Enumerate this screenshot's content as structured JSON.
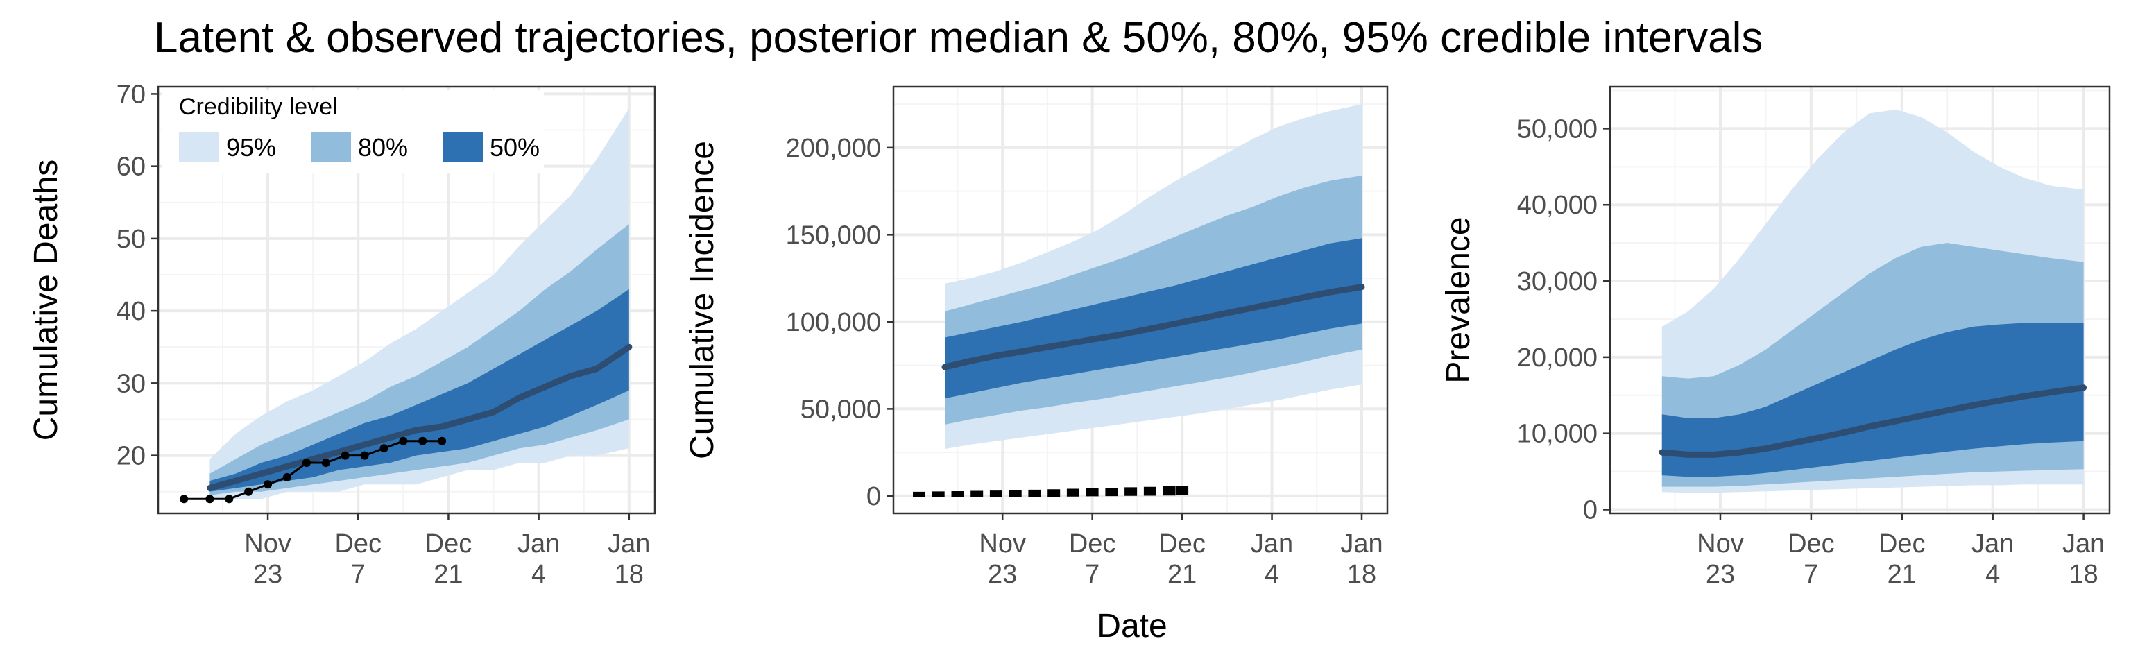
{
  "title": "Latent & observed trajectories, posterior median & 50%, 80%, 95% credible intervals",
  "shared_xlabel": "Date",
  "legend": {
    "title": "Credibility level",
    "items": [
      {
        "label": "95%",
        "color": "#d6e6f5"
      },
      {
        "label": "80%",
        "color": "#92bcdb"
      },
      {
        "label": "50%",
        "color": "#2d71b3"
      }
    ]
  },
  "colors": {
    "median": "#2e4d72",
    "observed": "#000000",
    "band95": "#d6e6f5",
    "band80": "#92bcdb",
    "band50": "#2d71b3"
  },
  "x_axis": {
    "ticks": [
      {
        "date": "2020-11-23",
        "label": [
          "Nov",
          "23"
        ]
      },
      {
        "date": "2020-12-07",
        "label": [
          "Dec",
          "7"
        ]
      },
      {
        "date": "2020-12-21",
        "label": [
          "Dec",
          "21"
        ]
      },
      {
        "date": "2021-01-04",
        "label": [
          "Jan",
          "4"
        ]
      },
      {
        "date": "2021-01-18",
        "label": [
          "Jan",
          "18"
        ]
      }
    ],
    "range": [
      "2020-11-06",
      "2021-01-22"
    ]
  },
  "chart_data": [
    {
      "type": "area",
      "ylabel": "Cumulative Deaths",
      "ylim": [
        12,
        71
      ],
      "yticks": [
        20,
        30,
        40,
        50,
        60,
        70
      ],
      "ytick_labels": [
        "20",
        "30",
        "40",
        "50",
        "60",
        "70"
      ],
      "legend_position": "top-left",
      "x": [
        "2020-11-14",
        "2020-11-18",
        "2020-11-22",
        "2020-11-26",
        "2020-11-30",
        "2020-12-04",
        "2020-12-08",
        "2020-12-12",
        "2020-12-16",
        "2020-12-20",
        "2020-12-24",
        "2020-12-28",
        "2021-01-01",
        "2021-01-05",
        "2021-01-09",
        "2021-01-13",
        "2021-01-18"
      ],
      "bands": {
        "95%": {
          "lower": [
            14,
            14,
            14,
            15,
            15,
            15,
            16,
            16,
            16,
            17,
            18,
            18,
            19,
            19,
            20,
            20,
            21
          ],
          "upper": [
            19.5,
            23,
            25.5,
            27.5,
            29,
            31,
            33,
            35.5,
            37.5,
            40,
            42.5,
            45,
            49,
            52.5,
            56,
            61,
            68
          ]
        },
        "80%": {
          "lower": [
            14.5,
            15,
            15,
            15.5,
            16,
            16.5,
            17,
            17.5,
            18,
            18.5,
            19,
            20,
            21,
            21.5,
            22.5,
            23.5,
            25
          ],
          "upper": [
            17.5,
            19.5,
            21.5,
            23,
            24.5,
            26,
            27.5,
            29.5,
            31,
            33,
            35,
            37.5,
            40,
            43,
            45.5,
            48.5,
            52
          ]
        },
        "50%": {
          "lower": [
            15,
            15.5,
            16,
            16.5,
            17,
            18,
            18.5,
            19,
            20,
            20.5,
            21,
            22,
            23,
            24,
            25.5,
            27,
            29
          ],
          "upper": [
            16.5,
            17.5,
            19,
            20,
            21.5,
            23,
            24.5,
            25.5,
            27,
            28.5,
            30,
            32,
            34,
            36,
            38,
            40,
            43
          ]
        }
      },
      "median": [
        15.5,
        16.5,
        17.5,
        18.5,
        19.5,
        20.5,
        21.5,
        22.5,
        23.5,
        24,
        25,
        26,
        28,
        29.5,
        31,
        32,
        35
      ],
      "observed": {
        "x": [
          "2020-11-10",
          "2020-11-14",
          "2020-11-17",
          "2020-11-20",
          "2020-11-23",
          "2020-11-26",
          "2020-11-29",
          "2020-12-02",
          "2020-12-05",
          "2020-12-08",
          "2020-12-11",
          "2020-12-14",
          "2020-12-17",
          "2020-12-20"
        ],
        "y": [
          14,
          14,
          14,
          15,
          16,
          17,
          19,
          19,
          20,
          20,
          21,
          22,
          22,
          22
        ]
      }
    },
    {
      "type": "area",
      "ylabel": "Cumulative Incidence",
      "ylim": [
        -10000,
        235000
      ],
      "yticks": [
        0,
        50000,
        100000,
        150000,
        200000
      ],
      "ytick_labels": [
        "0",
        "50,000",
        "100,000",
        "150,000",
        "200,000"
      ],
      "x": [
        "2020-11-14",
        "2020-11-18",
        "2020-11-22",
        "2020-11-26",
        "2020-11-30",
        "2020-12-04",
        "2020-12-08",
        "2020-12-12",
        "2020-12-16",
        "2020-12-20",
        "2020-12-24",
        "2020-12-28",
        "2021-01-01",
        "2021-01-05",
        "2021-01-09",
        "2021-01-13",
        "2021-01-18"
      ],
      "bands": {
        "95%": {
          "lower": [
            27000,
            29500,
            31500,
            33500,
            35500,
            37500,
            39500,
            41500,
            43500,
            45500,
            47500,
            50000,
            52500,
            55000,
            58000,
            61000,
            64000
          ],
          "upper": [
            122000,
            125000,
            129000,
            134000,
            140000,
            146000,
            153000,
            162000,
            172000,
            181000,
            189000,
            197000,
            205000,
            212000,
            217000,
            221000,
            225000
          ]
        },
        "80%": {
          "lower": [
            41000,
            44000,
            46500,
            49000,
            51000,
            53500,
            55500,
            58000,
            60500,
            63000,
            65500,
            68000,
            71000,
            74000,
            77000,
            80500,
            84000
          ],
          "upper": [
            106000,
            110000,
            114000,
            118000,
            122000,
            127000,
            132000,
            137000,
            143000,
            149000,
            155000,
            161000,
            166000,
            172000,
            177000,
            181000,
            184000
          ]
        },
        "50%": {
          "lower": [
            56000,
            59000,
            62000,
            65000,
            67500,
            70000,
            72500,
            75000,
            77500,
            80000,
            82500,
            85000,
            87500,
            90000,
            93000,
            96000,
            99000
          ],
          "upper": [
            91000,
            94000,
            97000,
            100000,
            103500,
            107000,
            110500,
            114000,
            117500,
            121000,
            125000,
            129000,
            133000,
            137000,
            141000,
            145000,
            148000
          ]
        }
      },
      "median": [
        74000,
        77500,
        80500,
        83000,
        85500,
        88000,
        90500,
        93000,
        96000,
        99000,
        102000,
        105000,
        108000,
        111000,
        114000,
        117000,
        120000
      ],
      "observed": {
        "x": [
          "2020-11-10",
          "2020-11-13",
          "2020-11-16",
          "2020-11-19",
          "2020-11-22",
          "2020-11-25",
          "2020-11-28",
          "2020-12-01",
          "2020-12-04",
          "2020-12-07",
          "2020-12-10",
          "2020-12-13",
          "2020-12-16",
          "2020-12-19",
          "2020-12-21"
        ],
        "y": [
          800,
          900,
          1000,
          1100,
          1200,
          1400,
          1500,
          1700,
          1900,
          2100,
          2300,
          2500,
          2700,
          2900,
          3100
        ]
      }
    },
    {
      "type": "area",
      "ylabel": "Prevalence",
      "ylim": [
        -500,
        55500
      ],
      "yticks": [
        0,
        10000,
        20000,
        30000,
        40000,
        50000
      ],
      "ytick_labels": [
        "0",
        "10,000",
        "20,000",
        "30,000",
        "40,000",
        "50,000"
      ],
      "x": [
        "2020-11-14",
        "2020-11-18",
        "2020-11-22",
        "2020-11-26",
        "2020-11-30",
        "2020-12-04",
        "2020-12-08",
        "2020-12-12",
        "2020-12-16",
        "2020-12-20",
        "2020-12-24",
        "2020-12-28",
        "2021-01-01",
        "2021-01-05",
        "2021-01-09",
        "2021-01-13",
        "2021-01-18"
      ],
      "bands": {
        "95%": {
          "lower": [
            2300,
            2200,
            2200,
            2300,
            2400,
            2500,
            2600,
            2700,
            2800,
            2900,
            3000,
            3100,
            3200,
            3200,
            3300,
            3300,
            3300
          ],
          "upper": [
            24000,
            26000,
            29000,
            33000,
            37500,
            42000,
            46000,
            49500,
            52000,
            52500,
            51500,
            49500,
            47000,
            45000,
            43500,
            42500,
            42000
          ]
        },
        "80%": {
          "lower": [
            3000,
            3000,
            3000,
            3100,
            3300,
            3500,
            3700,
            3900,
            4100,
            4300,
            4500,
            4700,
            4900,
            5000,
            5100,
            5200,
            5300
          ],
          "upper": [
            17500,
            17200,
            17500,
            19000,
            21000,
            23500,
            26000,
            28500,
            31000,
            33000,
            34500,
            35000,
            34500,
            34000,
            33500,
            33000,
            32500
          ]
        },
        "50%": {
          "lower": [
            4500,
            4300,
            4300,
            4500,
            4800,
            5200,
            5600,
            6000,
            6400,
            6800,
            7200,
            7600,
            8000,
            8300,
            8600,
            8800,
            9000
          ],
          "upper": [
            12500,
            12000,
            12000,
            12500,
            13500,
            15000,
            16500,
            18000,
            19500,
            21000,
            22300,
            23300,
            24000,
            24300,
            24500,
            24500,
            24500
          ]
        }
      },
      "median": [
        7500,
        7200,
        7200,
        7500,
        8000,
        8700,
        9400,
        10100,
        10900,
        11600,
        12300,
        13000,
        13700,
        14300,
        14900,
        15400,
        16000
      ]
    }
  ]
}
